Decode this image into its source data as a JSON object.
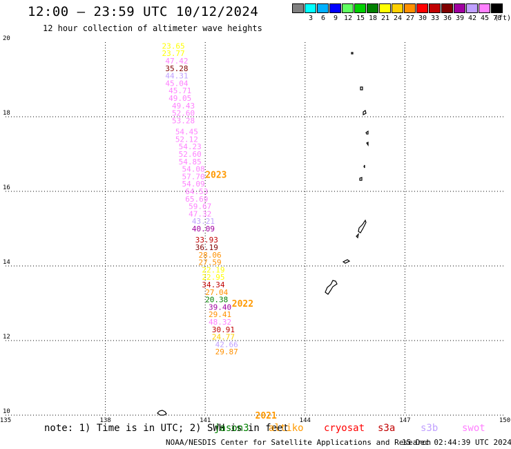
{
  "header": {
    "title": "12:00 – 23:59 UTC 10/12/2024",
    "subtitle": "12 hour collection of altimeter wave heights"
  },
  "legend": {
    "unit": "(ft)",
    "bins": [
      {
        "color": "#808080",
        "label": ""
      },
      {
        "color": "#00ffff",
        "label": "3"
      },
      {
        "color": "#00b0ff",
        "label": "6"
      },
      {
        "color": "#0000ff",
        "label": "9"
      },
      {
        "color": "#60ff60",
        "label": "12"
      },
      {
        "color": "#00d000",
        "label": "15"
      },
      {
        "color": "#008000",
        "label": "18"
      },
      {
        "color": "#ffff00",
        "label": "21"
      },
      {
        "color": "#ffd000",
        "label": "24"
      },
      {
        "color": "#ff9000",
        "label": "27"
      },
      {
        "color": "#ff0000",
        "label": "30"
      },
      {
        "color": "#c00000",
        "label": "33"
      },
      {
        "color": "#800000",
        "label": "36"
      },
      {
        "color": "#a000a0",
        "label": "39"
      },
      {
        "color": "#c0a0ff",
        "label": "42"
      },
      {
        "color": "#ff80ff",
        "label": "45"
      },
      {
        "color": "#000000",
        "label": "70"
      }
    ]
  },
  "map": {
    "lon_range": [
      135,
      150
    ],
    "lat_range": [
      10,
      20
    ],
    "lon_ticks": [
      "135",
      "138",
      "141",
      "144",
      "147",
      "150"
    ],
    "lat_ticks": [
      "10",
      "12",
      "14",
      "16",
      "18",
      "20"
    ],
    "land_color": "#000000",
    "grid": "dotted"
  },
  "track_labels": [
    {
      "text": "2023",
      "lon": 141.0,
      "lat": 16.45,
      "color": "#ff9900"
    },
    {
      "text": "2022",
      "lon": 141.8,
      "lat": 13.0,
      "color": "#ff9900"
    },
    {
      "text": "2021",
      "lon": 142.5,
      "lat": 10.0,
      "color": "#ff9900"
    }
  ],
  "observations": [
    {
      "text": "23.65",
      "lon": 139.7,
      "lat": 19.9,
      "color": "#ffff00"
    },
    {
      "text": "23.77",
      "lon": 139.7,
      "lat": 19.7,
      "color": "#ffff00"
    },
    {
      "text": "47.42",
      "lon": 139.8,
      "lat": 19.5,
      "color": "#ff80ff"
    },
    {
      "text": "35.28",
      "lon": 139.8,
      "lat": 19.3,
      "color": "#800000"
    },
    {
      "text": "44.31",
      "lon": 139.8,
      "lat": 19.1,
      "color": "#c0a0ff"
    },
    {
      "text": "45.04",
      "lon": 139.8,
      "lat": 18.9,
      "color": "#ff80ff"
    },
    {
      "text": "45.71",
      "lon": 139.9,
      "lat": 18.7,
      "color": "#ff80ff"
    },
    {
      "text": "49.05",
      "lon": 139.9,
      "lat": 18.5,
      "color": "#ff80ff"
    },
    {
      "text": "49.43",
      "lon": 140.0,
      "lat": 18.3,
      "color": "#ff80ff"
    },
    {
      "text": "52.60",
      "lon": 140.0,
      "lat": 18.1,
      "color": "#ff80ff"
    },
    {
      "text": "53.28",
      "lon": 140.0,
      "lat": 17.9,
      "color": "#ff80ff"
    },
    {
      "text": "54.45",
      "lon": 140.1,
      "lat": 17.6,
      "color": "#ff80ff"
    },
    {
      "text": "52.12",
      "lon": 140.1,
      "lat": 17.4,
      "color": "#ff80ff"
    },
    {
      "text": "54.23",
      "lon": 140.2,
      "lat": 17.2,
      "color": "#ff80ff"
    },
    {
      "text": "52.60",
      "lon": 140.2,
      "lat": 17.0,
      "color": "#ff80ff"
    },
    {
      "text": "54.85",
      "lon": 140.2,
      "lat": 16.8,
      "color": "#ff80ff"
    },
    {
      "text": "54.08",
      "lon": 140.3,
      "lat": 16.6,
      "color": "#ff80ff"
    },
    {
      "text": "57.70",
      "lon": 140.3,
      "lat": 16.4,
      "color": "#ff80ff"
    },
    {
      "text": "54.09",
      "lon": 140.3,
      "lat": 16.2,
      "color": "#ff80ff"
    },
    {
      "text": "64.53",
      "lon": 140.4,
      "lat": 16.0,
      "color": "#ff80ff"
    },
    {
      "text": "65.69",
      "lon": 140.4,
      "lat": 15.8,
      "color": "#ff80ff"
    },
    {
      "text": "59.67",
      "lon": 140.5,
      "lat": 15.6,
      "color": "#ff80ff"
    },
    {
      "text": "47.32",
      "lon": 140.5,
      "lat": 15.4,
      "color": "#ff80ff"
    },
    {
      "text": "43.21",
      "lon": 140.6,
      "lat": 15.2,
      "color": "#c0a0ff"
    },
    {
      "text": "40.09",
      "lon": 140.6,
      "lat": 15.0,
      "color": "#a000a0"
    },
    {
      "text": "33.93",
      "lon": 140.7,
      "lat": 14.7,
      "color": "#c00000"
    },
    {
      "text": "36.19",
      "lon": 140.7,
      "lat": 14.5,
      "color": "#800000"
    },
    {
      "text": "28.06",
      "lon": 140.8,
      "lat": 14.3,
      "color": "#ff9000"
    },
    {
      "text": "27.59",
      "lon": 140.8,
      "lat": 14.1,
      "color": "#ff9000"
    },
    {
      "text": "22.19",
      "lon": 140.9,
      "lat": 13.9,
      "color": "#ffff00"
    },
    {
      "text": "22.95",
      "lon": 140.9,
      "lat": 13.7,
      "color": "#ffff00"
    },
    {
      "text": "34.34",
      "lon": 140.9,
      "lat": 13.5,
      "color": "#c00000"
    },
    {
      "text": "27.04",
      "lon": 141.0,
      "lat": 13.3,
      "color": "#ff9000"
    },
    {
      "text": "20.38",
      "lon": 141.0,
      "lat": 13.1,
      "color": "#008000"
    },
    {
      "text": "39.40",
      "lon": 141.1,
      "lat": 12.9,
      "color": "#a000a0"
    },
    {
      "text": "29.41",
      "lon": 141.1,
      "lat": 12.7,
      "color": "#ff9000"
    },
    {
      "text": "48.32",
      "lon": 141.1,
      "lat": 12.5,
      "color": "#ff80ff"
    },
    {
      "text": "30.91",
      "lon": 141.2,
      "lat": 12.3,
      "color": "#c00000"
    },
    {
      "text": "24.77",
      "lon": 141.2,
      "lat": 12.1,
      "color": "#ffd000"
    },
    {
      "text": "42.66",
      "lon": 141.3,
      "lat": 11.9,
      "color": "#c0a0ff"
    },
    {
      "text": "29.87",
      "lon": 141.3,
      "lat": 11.7,
      "color": "#ff9000"
    }
  ],
  "footer": {
    "note": "note: 1) Time is in UTC; 2) SWH is in feet",
    "satellites": [
      {
        "name": "jason3",
        "color": "#008000"
      },
      {
        "name": "altiko",
        "color": "#ff9900"
      },
      {
        "name": "cryosat",
        "color": "#ff0000"
      },
      {
        "name": "s3a",
        "color": "#c00000"
      },
      {
        "name": "s3b",
        "color": "#c0a0ff"
      },
      {
        "name": "swot",
        "color": "#ff80ff"
      }
    ],
    "credit": "NOAA/NESDIS Center for Satellite Applications and Research",
    "timestamp": "15 Dec 02:44:39 UTC 2024"
  }
}
